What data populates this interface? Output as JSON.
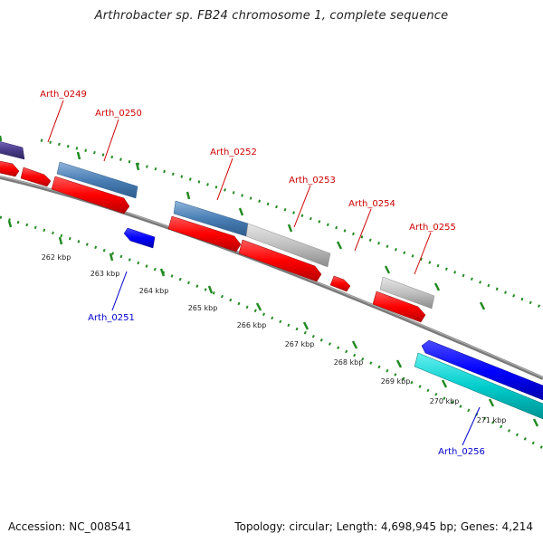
{
  "title": "Arthrobacter sp. FB24 chromosome 1, complete sequence",
  "footer": {
    "accession": "Accession: NC_008541",
    "summary": "Topology: circular; Length: 4,698,945 bp; Genes: 4,214"
  },
  "colors": {
    "forward_cds": "#ff0000",
    "reverse_cds": "#0000ff",
    "forward_rna": "#4a7fb5",
    "unnamed_gene": "#c0c0c0",
    "reverse_rna": "#00cccc",
    "other": "#4b3d8a",
    "backbone": "#7a7a7a",
    "ticks": "#228b22",
    "forward_label": "#cc0000",
    "reverse_label": "#0000cc"
  },
  "gene_labels": [
    {
      "id": "g249",
      "text": "Arth_0249",
      "strand": "forward"
    },
    {
      "id": "g250",
      "text": "Arth_0250",
      "strand": "forward"
    },
    {
      "id": "g252",
      "text": "Arth_0252",
      "strand": "forward"
    },
    {
      "id": "g253",
      "text": "Arth_0253",
      "strand": "forward"
    },
    {
      "id": "g254",
      "text": "Arth_0254",
      "strand": "forward"
    },
    {
      "id": "g255",
      "text": "Arth_0255",
      "strand": "forward"
    },
    {
      "id": "g251",
      "text": "Arth_0251",
      "strand": "reverse"
    },
    {
      "id": "g256",
      "text": "Arth_0256",
      "strand": "reverse"
    }
  ],
  "scale_labels": [
    "262 kbp",
    "263 kbp",
    "264 kbp",
    "265 kbp",
    "266 kbp",
    "267 kbp",
    "268 kbp",
    "269 kbp",
    "270 kbp",
    "271 kbp"
  ]
}
